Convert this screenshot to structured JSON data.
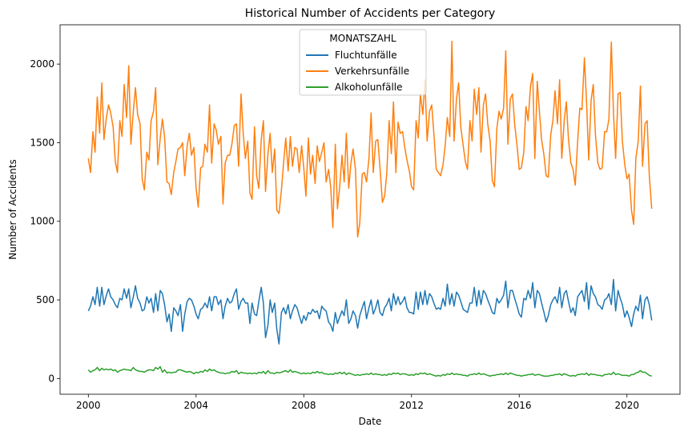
{
  "chart_data": {
    "type": "line",
    "title": "Historical Number of Accidents per Category",
    "xlabel": "Date",
    "ylabel": "Number of Accidents",
    "legend_title": "MONATSZAHL",
    "legend": "upper center",
    "xlim": [
      1998.95,
      2021.97
    ],
    "xticks": [
      2000,
      2004,
      2008,
      2012,
      2016,
      2020
    ],
    "ylim": [
      -100,
      2250
    ],
    "yticks": [
      0,
      500,
      1000,
      1500,
      2000
    ],
    "x": [
      2000,
      2000.08,
      2000.17,
      2000.25,
      2000.33,
      2000.42,
      2000.5,
      2000.58,
      2000.67,
      2000.75,
      2000.83,
      2000.92,
      2001,
      2001.08,
      2001.17,
      2001.25,
      2001.33,
      2001.42,
      2001.5,
      2001.58,
      2001.67,
      2001.75,
      2001.83,
      2001.92,
      2002,
      2002.08,
      2002.17,
      2002.25,
      2002.33,
      2002.42,
      2002.5,
      2002.58,
      2002.67,
      2002.75,
      2002.83,
      2002.92,
      2003,
      2003.08,
      2003.17,
      2003.25,
      2003.33,
      2003.42,
      2003.5,
      2003.58,
      2003.67,
      2003.75,
      2003.83,
      2003.92,
      2004,
      2004.08,
      2004.17,
      2004.25,
      2004.33,
      2004.42,
      2004.5,
      2004.58,
      2004.67,
      2004.75,
      2004.83,
      2004.92,
      2005,
      2005.08,
      2005.17,
      2005.25,
      2005.33,
      2005.42,
      2005.5,
      2005.58,
      2005.67,
      2005.75,
      2005.83,
      2005.92,
      2006,
      2006.08,
      2006.17,
      2006.25,
      2006.33,
      2006.42,
      2006.5,
      2006.58,
      2006.67,
      2006.75,
      2006.83,
      2006.92,
      2007,
      2007.08,
      2007.17,
      2007.25,
      2007.33,
      2007.42,
      2007.5,
      2007.58,
      2007.67,
      2007.75,
      2007.83,
      2007.92,
      2008,
      2008.08,
      2008.17,
      2008.25,
      2008.33,
      2008.42,
      2008.5,
      2008.58,
      2008.67,
      2008.75,
      2008.83,
      2008.92,
      2009,
      2009.08,
      2009.17,
      2009.25,
      2009.33,
      2009.42,
      2009.5,
      2009.58,
      2009.67,
      2009.75,
      2009.83,
      2009.92,
      2010,
      2010.08,
      2010.17,
      2010.25,
      2010.33,
      2010.42,
      2010.5,
      2010.58,
      2010.67,
      2010.75,
      2010.83,
      2010.92,
      2011,
      2011.08,
      2011.17,
      2011.25,
      2011.33,
      2011.42,
      2011.5,
      2011.58,
      2011.67,
      2011.75,
      2011.83,
      2011.92,
      2012,
      2012.08,
      2012.17,
      2012.25,
      2012.33,
      2012.42,
      2012.5,
      2012.58,
      2012.67,
      2012.75,
      2012.83,
      2012.92,
      2013,
      2013.08,
      2013.17,
      2013.25,
      2013.33,
      2013.42,
      2013.5,
      2013.58,
      2013.67,
      2013.75,
      2013.83,
      2013.92,
      2014,
      2014.08,
      2014.17,
      2014.25,
      2014.33,
      2014.42,
      2014.5,
      2014.58,
      2014.67,
      2014.75,
      2014.83,
      2014.92,
      2015,
      2015.08,
      2015.17,
      2015.25,
      2015.33,
      2015.42,
      2015.5,
      2015.58,
      2015.67,
      2015.75,
      2015.83,
      2015.92,
      2016,
      2016.08,
      2016.17,
      2016.25,
      2016.33,
      2016.42,
      2016.5,
      2016.58,
      2016.67,
      2016.75,
      2016.83,
      2016.92,
      2017,
      2017.08,
      2017.17,
      2017.25,
      2017.33,
      2017.42,
      2017.5,
      2017.58,
      2017.67,
      2017.75,
      2017.83,
      2017.92,
      2018,
      2018.08,
      2018.17,
      2018.25,
      2018.33,
      2018.42,
      2018.5,
      2018.58,
      2018.67,
      2018.75,
      2018.83,
      2018.92,
      2019,
      2019.08,
      2019.17,
      2019.25,
      2019.33,
      2019.42,
      2019.5,
      2019.58,
      2019.67,
      2019.75,
      2019.83,
      2019.92,
      2020,
      2020.08,
      2020.17,
      2020.25,
      2020.33,
      2020.42,
      2020.5,
      2020.58,
      2020.67,
      2020.75,
      2020.83,
      2020.92
    ],
    "series": [
      {
        "name": "Fluchtunfälle",
        "color": "#1f77b4",
        "values": [
          430,
          460,
          520,
          470,
          580,
          460,
          580,
          470,
          530,
          570,
          520,
          500,
          470,
          450,
          510,
          500,
          570,
          510,
          570,
          450,
          520,
          590,
          510,
          480,
          430,
          440,
          520,
          480,
          510,
          420,
          540,
          430,
          560,
          540,
          470,
          360,
          410,
          300,
          450,
          430,
          400,
          470,
          300,
          410,
          490,
          510,
          500,
          460,
          410,
          380,
          440,
          450,
          480,
          450,
          520,
          430,
          520,
          520,
          470,
          500,
          380,
          460,
          510,
          480,
          490,
          540,
          570,
          440,
          490,
          510,
          480,
          480,
          350,
          480,
          410,
          400,
          490,
          580,
          480,
          260,
          340,
          500,
          420,
          480,
          310,
          220,
          420,
          450,
          410,
          470,
          380,
          430,
          470,
          450,
          400,
          350,
          400,
          370,
          420,
          410,
          440,
          420,
          430,
          380,
          460,
          440,
          430,
          360,
          340,
          300,
          420,
          350,
          390,
          430,
          400,
          500,
          350,
          380,
          430,
          400,
          320,
          400,
          450,
          490,
          380,
          450,
          500,
          410,
          450,
          500,
          420,
          400,
          450,
          470,
          510,
          430,
          540,
          470,
          520,
          470,
          490,
          520,
          450,
          420,
          420,
          410,
          550,
          440,
          550,
          470,
          560,
          470,
          540,
          520,
          480,
          440,
          450,
          440,
          510,
          460,
          600,
          470,
          540,
          460,
          550,
          530,
          490,
          440,
          430,
          420,
          480,
          480,
          580,
          460,
          560,
          470,
          560,
          540,
          500,
          460,
          420,
          410,
          510,
          480,
          500,
          530,
          620,
          450,
          560,
          560,
          510,
          460,
          410,
          390,
          510,
          500,
          560,
          510,
          610,
          450,
          560,
          540,
          480,
          420,
          360,
          400,
          470,
          500,
          520,
          480,
          580,
          450,
          540,
          560,
          490,
          420,
          450,
          400,
          520,
          540,
          560,
          490,
          610,
          440,
          590,
          540,
          520,
          470,
          460,
          440,
          500,
          510,
          540,
          470,
          630,
          430,
          560,
          510,
          470,
          390,
          430,
          390,
          330,
          410,
          460,
          430,
          530,
          380,
          500,
          520,
          470,
          370
        ]
      },
      {
        "name": "Verkehrsunfälle",
        "color": "#ff7f0e",
        "values": [
          1400,
          1310,
          1570,
          1440,
          1790,
          1560,
          1880,
          1520,
          1660,
          1740,
          1690,
          1600,
          1380,
          1310,
          1640,
          1540,
          1870,
          1660,
          1990,
          1490,
          1700,
          1850,
          1680,
          1620,
          1270,
          1200,
          1440,
          1390,
          1640,
          1700,
          1850,
          1360,
          1530,
          1650,
          1540,
          1250,
          1240,
          1170,
          1310,
          1380,
          1460,
          1470,
          1500,
          1290,
          1480,
          1560,
          1420,
          1470,
          1210,
          1090,
          1340,
          1350,
          1490,
          1440,
          1740,
          1370,
          1620,
          1580,
          1490,
          1540,
          1110,
          1370,
          1420,
          1420,
          1490,
          1610,
          1620,
          1350,
          1810,
          1560,
          1400,
          1510,
          1180,
          1140,
          1600,
          1290,
          1210,
          1520,
          1640,
          1190,
          1430,
          1560,
          1310,
          1460,
          1070,
          1050,
          1200,
          1370,
          1530,
          1320,
          1540,
          1350,
          1470,
          1460,
          1310,
          1480,
          1340,
          1160,
          1530,
          1300,
          1420,
          1240,
          1480,
          1380,
          1440,
          1500,
          1250,
          1330,
          1220,
          960,
          1490,
          1080,
          1210,
          1420,
          1250,
          1560,
          1210,
          1370,
          1460,
          1330,
          900,
          990,
          1300,
          1310,
          1250,
          1400,
          1690,
          1310,
          1510,
          1520,
          1340,
          1120,
          1160,
          1300,
          1640,
          1430,
          1760,
          1310,
          1630,
          1560,
          1570,
          1470,
          1390,
          1320,
          1220,
          1200,
          1640,
          1530,
          1810,
          1680,
          1900,
          1510,
          1700,
          1740,
          1560,
          1330,
          1310,
          1290,
          1360,
          1480,
          1660,
          1540,
          2145,
          1510,
          1780,
          1880,
          1600,
          1480,
          1380,
          1330,
          1640,
          1510,
          1840,
          1680,
          1850,
          1440,
          1740,
          1810,
          1620,
          1510,
          1260,
          1220,
          1590,
          1700,
          1650,
          1720,
          2085,
          1490,
          1780,
          1810,
          1620,
          1480,
          1330,
          1340,
          1440,
          1730,
          1640,
          1860,
          1940,
          1400,
          1890,
          1700,
          1520,
          1420,
          1290,
          1280,
          1550,
          1640,
          1830,
          1620,
          1900,
          1400,
          1640,
          1760,
          1520,
          1370,
          1330,
          1230,
          1510,
          1720,
          1710,
          2040,
          1760,
          1390,
          1770,
          1870,
          1550,
          1370,
          1330,
          1340,
          1570,
          1570,
          1650,
          2140,
          1690,
          1400,
          1810,
          1820,
          1510,
          1360,
          1270,
          1300,
          1070,
          980,
          1400,
          1510,
          1860,
          1350,
          1620,
          1640,
          1290,
          1080
        ]
      },
      {
        "name": "Alkoholunfälle",
        "color": "#2ca02c",
        "values": [
          55,
          40,
          50,
          55,
          70,
          50,
          65,
          55,
          60,
          55,
          60,
          50,
          55,
          40,
          50,
          55,
          60,
          55,
          55,
          50,
          70,
          55,
          50,
          45,
          45,
          40,
          50,
          55,
          55,
          50,
          70,
          60,
          75,
          40,
          55,
          35,
          40,
          35,
          40,
          40,
          55,
          55,
          50,
          45,
          40,
          45,
          40,
          30,
          40,
          35,
          45,
          40,
          55,
          45,
          60,
          50,
          55,
          45,
          40,
          35,
          35,
          30,
          35,
          35,
          45,
          40,
          50,
          30,
          40,
          35,
          35,
          30,
          35,
          30,
          35,
          30,
          40,
          35,
          45,
          30,
          50,
          35,
          35,
          30,
          40,
          35,
          40,
          45,
          50,
          40,
          55,
          40,
          45,
          40,
          35,
          30,
          35,
          30,
          35,
          30,
          40,
          35,
          45,
          35,
          40,
          30,
          30,
          25,
          30,
          25,
          35,
          30,
          40,
          30,
          40,
          25,
          35,
          30,
          25,
          20,
          25,
          20,
          25,
          25,
          30,
          25,
          35,
          25,
          30,
          25,
          25,
          20,
          25,
          20,
          30,
          25,
          35,
          30,
          35,
          25,
          30,
          30,
          25,
          20,
          25,
          20,
          30,
          25,
          35,
          30,
          35,
          25,
          30,
          25,
          20,
          15,
          20,
          15,
          25,
          20,
          30,
          25,
          35,
          25,
          30,
          25,
          25,
          20,
          20,
          15,
          25,
          25,
          30,
          25,
          35,
          25,
          30,
          25,
          20,
          15,
          20,
          20,
          25,
          25,
          30,
          25,
          35,
          25,
          35,
          30,
          25,
          20,
          20,
          15,
          20,
          20,
          25,
          25,
          30,
          20,
          25,
          25,
          20,
          15,
          15,
          15,
          20,
          20,
          25,
          25,
          30,
          20,
          30,
          25,
          20,
          15,
          20,
          15,
          25,
          25,
          30,
          25,
          35,
          20,
          30,
          25,
          25,
          20,
          20,
          15,
          25,
          25,
          30,
          25,
          40,
          25,
          30,
          25,
          20,
          20,
          20,
          15,
          25,
          25,
          35,
          40,
          50,
          40,
          40,
          30,
          20,
          15
        ]
      }
    ]
  }
}
